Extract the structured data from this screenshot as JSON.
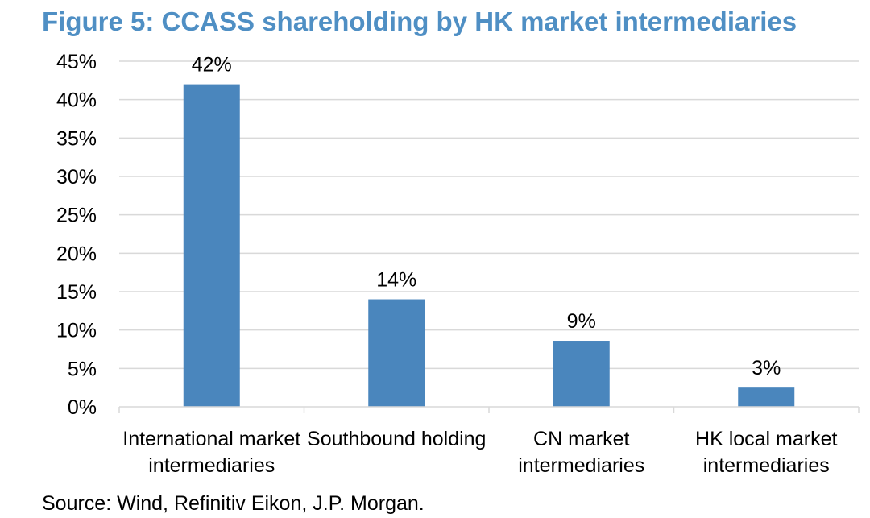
{
  "page": {
    "title": "Figure 5: CCASS shareholding by HK market intermediaries",
    "source": "Source: Wind, Refinitiv Eikon, J.P. Morgan."
  },
  "chart_data": {
    "type": "bar",
    "title": "Figure 5: CCASS shareholding by HK market intermediaries",
    "categories": [
      [
        "International market",
        "intermediaries"
      ],
      [
        "Southbound holding"
      ],
      [
        "CN market",
        "intermediaries"
      ],
      [
        "HK local market",
        "intermediaries"
      ]
    ],
    "values": [
      42,
      14,
      9,
      3
    ],
    "bar_heights": [
      42,
      14,
      8.6,
      2.5
    ],
    "data_labels": [
      "42%",
      "14%",
      "9%",
      "3%"
    ],
    "ylim": [
      0,
      45
    ],
    "yticks": [
      0,
      5,
      10,
      15,
      20,
      25,
      30,
      35,
      40,
      45
    ],
    "ytick_labels": [
      "0%",
      "5%",
      "10%",
      "15%",
      "20%",
      "25%",
      "30%",
      "35%",
      "40%",
      "45%"
    ],
    "xlabel": "",
    "ylabel": "",
    "grid": true,
    "bar_color": "#4a86bd",
    "grid_color": "#d9d9d9",
    "title_color": "#4f8fc4"
  }
}
